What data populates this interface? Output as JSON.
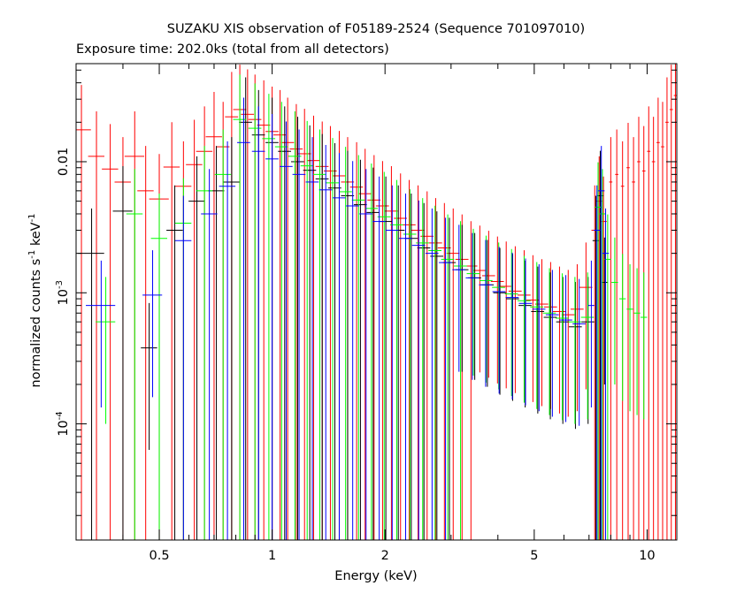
{
  "chart_data": {
    "type": "scatter",
    "title": "SUZAKU XIS observation of F05189-2524 (Sequence 701097010)",
    "subtitle": "Exposure time: 202.0ks (total from all detectors)",
    "xlabel": "Energy (keV)",
    "ylabel_parts": {
      "main": "normalized counts s",
      "sup1": "-1",
      "mid": " keV",
      "sup2": "-1"
    },
    "x_scale": "log",
    "y_scale": "log",
    "xlim": [
      0.3,
      12.0
    ],
    "ylim": [
      1.3e-05,
      0.056
    ],
    "x_ticks": [
      {
        "value": 0.5,
        "label": "0.5"
      },
      {
        "value": 1,
        "label": "1"
      },
      {
        "value": 2,
        "label": "2"
      },
      {
        "value": 5,
        "label": "5"
      },
      {
        "value": 10,
        "label": "10"
      }
    ],
    "y_ticks": [
      {
        "value": 0.01,
        "mant": "0.01",
        "exp": ""
      },
      {
        "value": 0.001,
        "mant": "10",
        "exp": "-3"
      },
      {
        "value": 0.0001,
        "mant": "10",
        "exp": "-4"
      }
    ],
    "grid": false,
    "legend": "none",
    "series": [
      {
        "color": "#ff0000",
        "points": [
          [
            0.31,
            0.0175,
            0.06
          ],
          [
            0.34,
            0.011,
            0.05
          ],
          [
            0.37,
            0.0088,
            0.05
          ],
          [
            0.4,
            0.007,
            0.05
          ],
          [
            0.43,
            0.011,
            0.06
          ],
          [
            0.46,
            0.006,
            0.05
          ],
          [
            0.5,
            0.0052,
            0.06
          ],
          [
            0.54,
            0.0091,
            0.05
          ],
          [
            0.58,
            0.0065,
            0.05
          ],
          [
            0.62,
            0.0095,
            0.05
          ],
          [
            0.66,
            0.012,
            0.05
          ],
          [
            0.7,
            0.0155,
            0.05
          ],
          [
            0.74,
            0.013,
            0.04
          ],
          [
            0.78,
            0.022,
            0.04
          ],
          [
            0.82,
            0.025,
            0.04
          ],
          [
            0.86,
            0.023,
            0.04
          ],
          [
            0.9,
            0.021,
            0.04
          ],
          [
            0.95,
            0.019,
            0.04
          ],
          [
            1.0,
            0.017,
            0.04
          ],
          [
            1.05,
            0.016,
            0.04
          ],
          [
            1.1,
            0.014,
            0.04
          ],
          [
            1.16,
            0.0125,
            0.04
          ],
          [
            1.22,
            0.0115,
            0.04
          ],
          [
            1.29,
            0.0102,
            0.04
          ],
          [
            1.36,
            0.0092,
            0.04
          ],
          [
            1.43,
            0.0085,
            0.04
          ],
          [
            1.51,
            0.0078,
            0.04
          ],
          [
            1.59,
            0.007,
            0.04
          ],
          [
            1.68,
            0.0064,
            0.04
          ],
          [
            1.77,
            0.0057,
            0.04
          ],
          [
            1.87,
            0.0051,
            0.04
          ],
          [
            1.97,
            0.0046,
            0.04
          ],
          [
            2.08,
            0.0042,
            0.04
          ],
          [
            2.2,
            0.0037,
            0.04
          ],
          [
            2.32,
            0.0033,
            0.04
          ],
          [
            2.45,
            0.003,
            0.04
          ],
          [
            2.59,
            0.0027,
            0.04
          ],
          [
            2.73,
            0.0024,
            0.04
          ],
          [
            2.88,
            0.0022,
            0.04
          ],
          [
            3.04,
            0.002,
            0.04
          ],
          [
            3.21,
            0.0018,
            0.04
          ],
          [
            3.39,
            0.0016,
            0.04
          ],
          [
            3.58,
            0.00148,
            0.04
          ],
          [
            3.78,
            0.00135,
            0.04
          ],
          [
            3.99,
            0.00122,
            0.04
          ],
          [
            4.21,
            0.00112,
            0.04
          ],
          [
            4.45,
            0.00103,
            0.04
          ],
          [
            4.7,
            0.00096,
            0.04
          ],
          [
            4.96,
            0.00088,
            0.04
          ],
          [
            5.24,
            0.00082,
            0.04
          ],
          [
            5.53,
            0.00078,
            0.04
          ],
          [
            5.84,
            0.00072,
            0.04
          ],
          [
            6.16,
            0.00068,
            0.04
          ],
          [
            6.51,
            0.00075,
            0.04
          ],
          [
            6.87,
            0.0011,
            0.04
          ],
          [
            7.25,
            0.003,
            0.02
          ],
          [
            7.45,
            0.005,
            0.02
          ],
          [
            7.65,
            0.0035,
            0.02
          ],
          [
            8.0,
            0.007,
            0.01
          ],
          [
            8.3,
            0.008,
            0.01
          ],
          [
            8.6,
            0.0065,
            0.01
          ],
          [
            8.9,
            0.009,
            0.01
          ],
          [
            9.2,
            0.007,
            0.01
          ],
          [
            9.5,
            0.01,
            0.01
          ],
          [
            9.8,
            0.0085,
            0.01
          ],
          [
            10.1,
            0.012,
            0.01
          ],
          [
            10.4,
            0.01,
            0.01
          ],
          [
            10.7,
            0.014,
            0.01
          ],
          [
            11.0,
            0.013,
            0.01
          ],
          [
            11.3,
            0.02,
            0.01
          ],
          [
            11.6,
            0.025,
            0.01
          ],
          [
            11.9,
            0.032,
            0.01
          ]
        ]
      },
      {
        "color": "#000000",
        "points": [
          [
            0.33,
            0.002,
            0.08
          ],
          [
            0.4,
            0.0042,
            0.06
          ],
          [
            0.47,
            0.00038,
            0.05
          ],
          [
            0.55,
            0.003,
            0.05
          ],
          [
            0.63,
            0.005,
            0.05
          ],
          [
            0.71,
            0.006,
            0.05
          ],
          [
            0.78,
            0.007,
            0.05
          ],
          [
            0.85,
            0.02,
            0.04
          ],
          [
            0.92,
            0.016,
            0.04
          ],
          [
            1.0,
            0.014,
            0.04
          ],
          [
            1.08,
            0.012,
            0.04
          ],
          [
            1.17,
            0.01,
            0.04
          ],
          [
            1.26,
            0.0086,
            0.04
          ],
          [
            1.36,
            0.0074,
            0.04
          ],
          [
            1.47,
            0.0063,
            0.04
          ],
          [
            1.59,
            0.0055,
            0.04
          ],
          [
            1.72,
            0.0047,
            0.04
          ],
          [
            1.86,
            0.0041,
            0.04
          ],
          [
            2.01,
            0.0035,
            0.04
          ],
          [
            2.17,
            0.003,
            0.04
          ],
          [
            2.35,
            0.0026,
            0.04
          ],
          [
            2.54,
            0.0022,
            0.04
          ],
          [
            2.75,
            0.0019,
            0.04
          ],
          [
            2.97,
            0.0017,
            0.04
          ],
          [
            3.21,
            0.0015,
            0.04
          ],
          [
            3.47,
            0.0013,
            0.04
          ],
          [
            3.75,
            0.00115,
            0.04
          ],
          [
            4.05,
            0.001,
            0.04
          ],
          [
            4.38,
            0.0009,
            0.04
          ],
          [
            4.73,
            0.0008,
            0.04
          ],
          [
            5.11,
            0.00072,
            0.04
          ],
          [
            5.52,
            0.00065,
            0.04
          ],
          [
            5.96,
            0.0006,
            0.04
          ],
          [
            6.44,
            0.00055,
            0.04
          ],
          [
            6.96,
            0.0006,
            0.04
          ],
          [
            7.3,
            0.0025,
            0.02
          ],
          [
            7.5,
            0.0055,
            0.02
          ],
          [
            7.7,
            0.0012,
            0.02
          ]
        ]
      },
      {
        "color": "#00ff00",
        "points": [
          [
            0.36,
            0.0006,
            0.06
          ],
          [
            0.43,
            0.004,
            0.05
          ],
          [
            0.5,
            0.0026,
            0.05
          ],
          [
            0.58,
            0.0034,
            0.05
          ],
          [
            0.66,
            0.006,
            0.05
          ],
          [
            0.74,
            0.008,
            0.05
          ],
          [
            0.82,
            0.021,
            0.04
          ],
          [
            0.9,
            0.018,
            0.04
          ],
          [
            0.98,
            0.015,
            0.04
          ],
          [
            1.06,
            0.013,
            0.04
          ],
          [
            1.15,
            0.011,
            0.04
          ],
          [
            1.24,
            0.0093,
            0.04
          ],
          [
            1.34,
            0.008,
            0.04
          ],
          [
            1.45,
            0.0069,
            0.04
          ],
          [
            1.57,
            0.0059,
            0.04
          ],
          [
            1.7,
            0.0051,
            0.04
          ],
          [
            1.84,
            0.0044,
            0.04
          ],
          [
            1.99,
            0.0038,
            0.04
          ],
          [
            2.15,
            0.0033,
            0.04
          ],
          [
            2.33,
            0.0028,
            0.04
          ],
          [
            2.52,
            0.0024,
            0.04
          ],
          [
            2.72,
            0.0021,
            0.04
          ],
          [
            2.94,
            0.0018,
            0.04
          ],
          [
            3.18,
            0.0016,
            0.04
          ],
          [
            3.44,
            0.0014,
            0.04
          ],
          [
            3.72,
            0.00124,
            0.04
          ],
          [
            4.02,
            0.0011,
            0.04
          ],
          [
            4.35,
            0.00098,
            0.04
          ],
          [
            4.7,
            0.00087,
            0.04
          ],
          [
            5.08,
            0.00078,
            0.04
          ],
          [
            5.49,
            0.0007,
            0.04
          ],
          [
            5.94,
            0.00064,
            0.04
          ],
          [
            6.42,
            0.0006,
            0.04
          ],
          [
            6.94,
            0.00065,
            0.04
          ],
          [
            7.4,
            0.0045,
            0.02
          ],
          [
            7.6,
            0.004,
            0.02
          ],
          [
            7.85,
            0.0018,
            0.02
          ],
          [
            8.2,
            0.0012,
            0.02
          ],
          [
            8.6,
            0.0009,
            0.02
          ],
          [
            9.0,
            0.00075,
            0.02
          ],
          [
            9.4,
            0.0007,
            0.02
          ],
          [
            9.8,
            0.00065,
            0.02
          ]
        ]
      },
      {
        "color": "#0000ff",
        "points": [
          [
            0.35,
            0.0008,
            0.09
          ],
          [
            0.48,
            0.00096,
            0.06
          ],
          [
            0.58,
            0.0025,
            0.05
          ],
          [
            0.68,
            0.004,
            0.05
          ],
          [
            0.76,
            0.0065,
            0.05
          ],
          [
            0.84,
            0.014,
            0.04
          ],
          [
            0.92,
            0.012,
            0.04
          ],
          [
            1.0,
            0.0105,
            0.04
          ],
          [
            1.09,
            0.0092,
            0.04
          ],
          [
            1.18,
            0.008,
            0.04
          ],
          [
            1.28,
            0.007,
            0.04
          ],
          [
            1.39,
            0.0061,
            0.04
          ],
          [
            1.51,
            0.0053,
            0.04
          ],
          [
            1.64,
            0.0046,
            0.04
          ],
          [
            1.78,
            0.004,
            0.04
          ],
          [
            1.93,
            0.0035,
            0.04
          ],
          [
            2.09,
            0.003,
            0.04
          ],
          [
            2.27,
            0.0026,
            0.04
          ],
          [
            2.46,
            0.0023,
            0.04
          ],
          [
            2.67,
            0.002,
            0.04
          ],
          [
            2.9,
            0.0017,
            0.04
          ],
          [
            3.15,
            0.0015,
            0.04
          ],
          [
            3.42,
            0.0013,
            0.04
          ],
          [
            3.71,
            0.00115,
            0.04
          ],
          [
            4.03,
            0.00102,
            0.04
          ],
          [
            4.37,
            0.00092,
            0.04
          ],
          [
            4.74,
            0.00083,
            0.04
          ],
          [
            5.15,
            0.00075,
            0.04
          ],
          [
            5.59,
            0.00068,
            0.04
          ],
          [
            6.07,
            0.00062,
            0.04
          ],
          [
            6.59,
            0.00058,
            0.04
          ],
          [
            7.1,
            0.0008,
            0.02
          ],
          [
            7.35,
            0.003,
            0.02
          ],
          [
            7.55,
            0.006,
            0.02
          ],
          [
            7.75,
            0.002,
            0.02
          ]
        ]
      }
    ]
  }
}
